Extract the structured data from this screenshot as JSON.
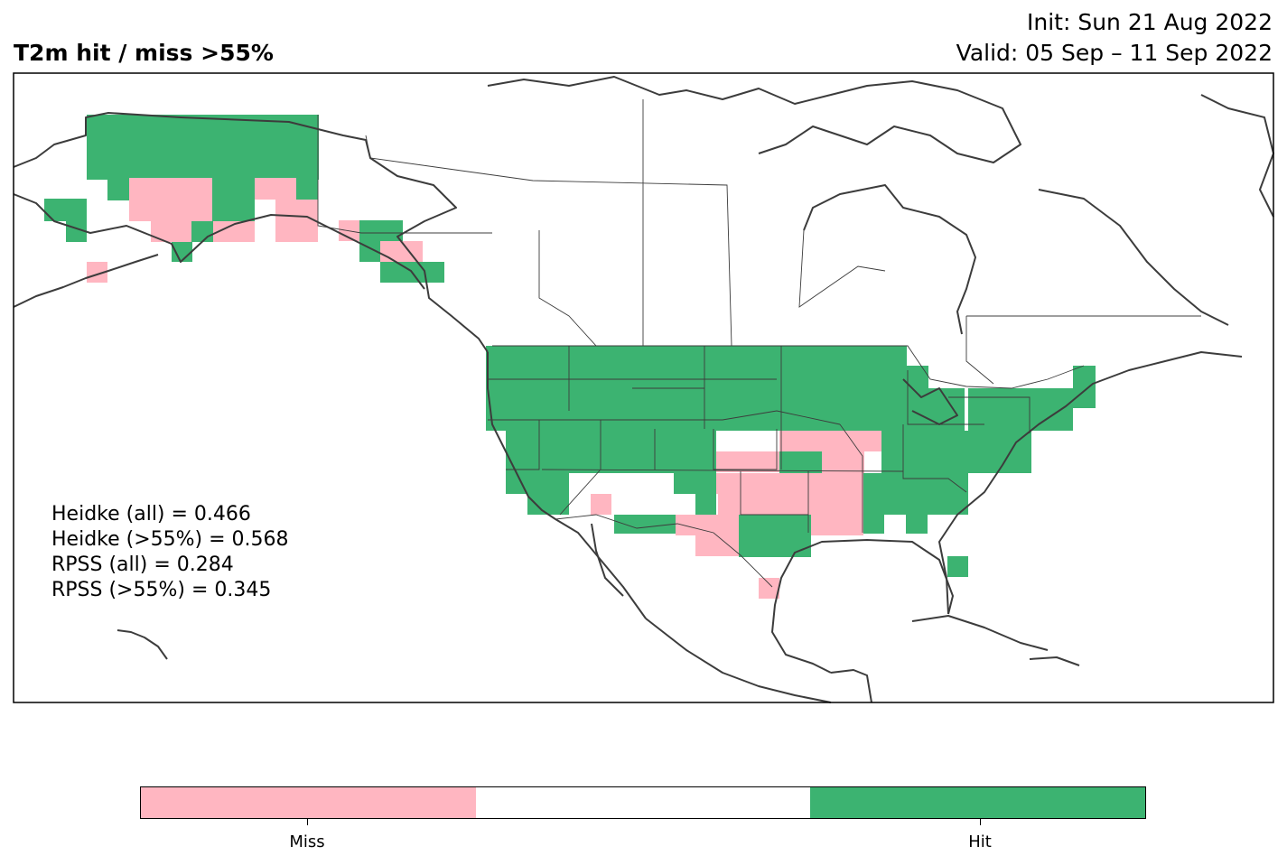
{
  "header": {
    "title": "T2m hit / miss  >55%",
    "init": "Init: Sun 21 Aug 2022",
    "valid": "Valid: 05 Sep – 11 Sep 2022"
  },
  "scores": [
    "Heidke (all) = 0.466",
    "Heidke (>55%) = 0.568",
    "RPSS (all) = 0.284",
    "RPSS (>55%) = 0.345"
  ],
  "legend": {
    "labels": [
      "Miss",
      "Hit"
    ],
    "colors": {
      "miss": "#ffb6c1",
      "neutral": "#ffffff",
      "hit": "#3cb371"
    }
  },
  "chart_data": {
    "type": "heatmap",
    "categories": [
      "Miss",
      "",
      "Hit"
    ],
    "colors": {
      "miss": "#ffb6c1",
      "hit": "#3cb371",
      "coast": "#3c3c3c"
    }
  }
}
